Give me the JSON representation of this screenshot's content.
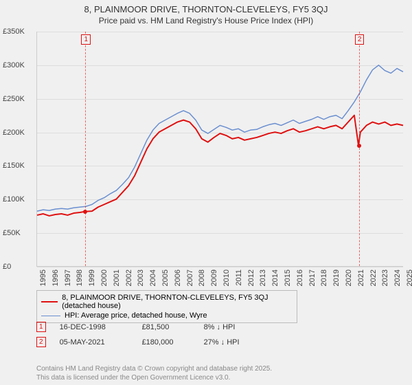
{
  "title": {
    "main": "8, PLAINMOOR DRIVE, THORNTON-CLEVELEYS, FY5 3QJ",
    "sub": "Price paid vs. HM Land Registry's House Price Index (HPI)"
  },
  "chart": {
    "type": "line",
    "background_color": "#f0f0f0",
    "grid_color": "#dddddd",
    "axis_color": "#cccccc",
    "ylim": [
      0,
      350000
    ],
    "ytick_step": 50000,
    "yticks": [
      "£0",
      "£50K",
      "£100K",
      "£150K",
      "£200K",
      "£250K",
      "£300K",
      "£350K"
    ],
    "xlim": [
      1995,
      2025
    ],
    "xticks": [
      1995,
      1996,
      1997,
      1998,
      1999,
      2000,
      2001,
      2002,
      2003,
      2004,
      2005,
      2006,
      2007,
      2008,
      2009,
      2010,
      2011,
      2012,
      2013,
      2014,
      2015,
      2016,
      2017,
      2018,
      2019,
      2020,
      2021,
      2022,
      2023,
      2024,
      2025
    ],
    "series": [
      {
        "id": "price_paid",
        "label": "8, PLAINMOOR DRIVE, THORNTON-CLEVELEYS, FY5 3QJ (detached house)",
        "color": "#e01010",
        "width": 2,
        "data": [
          [
            1995,
            76000
          ],
          [
            1995.5,
            78000
          ],
          [
            1996,
            75000
          ],
          [
            1996.5,
            77000
          ],
          [
            1997,
            78000
          ],
          [
            1997.5,
            76000
          ],
          [
            1998,
            79000
          ],
          [
            1998.5,
            80000
          ],
          [
            1998.96,
            81500
          ],
          [
            1999.5,
            82000
          ],
          [
            2000,
            88000
          ],
          [
            2000.5,
            92000
          ],
          [
            2001,
            96000
          ],
          [
            2001.5,
            100000
          ],
          [
            2002,
            110000
          ],
          [
            2002.5,
            120000
          ],
          [
            2003,
            135000
          ],
          [
            2003.5,
            155000
          ],
          [
            2004,
            175000
          ],
          [
            2004.5,
            190000
          ],
          [
            2005,
            200000
          ],
          [
            2005.5,
            205000
          ],
          [
            2006,
            210000
          ],
          [
            2006.5,
            215000
          ],
          [
            2007,
            218000
          ],
          [
            2007.5,
            215000
          ],
          [
            2008,
            205000
          ],
          [
            2008.5,
            190000
          ],
          [
            2009,
            185000
          ],
          [
            2009.5,
            192000
          ],
          [
            2010,
            198000
          ],
          [
            2010.5,
            195000
          ],
          [
            2011,
            190000
          ],
          [
            2011.5,
            192000
          ],
          [
            2012,
            188000
          ],
          [
            2012.5,
            190000
          ],
          [
            2013,
            192000
          ],
          [
            2013.5,
            195000
          ],
          [
            2014,
            198000
          ],
          [
            2014.5,
            200000
          ],
          [
            2015,
            198000
          ],
          [
            2015.5,
            202000
          ],
          [
            2016,
            205000
          ],
          [
            2016.5,
            200000
          ],
          [
            2017,
            202000
          ],
          [
            2017.5,
            205000
          ],
          [
            2018,
            208000
          ],
          [
            2018.5,
            205000
          ],
          [
            2019,
            208000
          ],
          [
            2019.5,
            210000
          ],
          [
            2020,
            205000
          ],
          [
            2020.5,
            215000
          ],
          [
            2021,
            225000
          ],
          [
            2021.34,
            180000
          ],
          [
            2021.5,
            200000
          ],
          [
            2022,
            210000
          ],
          [
            2022.5,
            215000
          ],
          [
            2023,
            212000
          ],
          [
            2023.5,
            215000
          ],
          [
            2024,
            210000
          ],
          [
            2024.5,
            212000
          ],
          [
            2025,
            210000
          ]
        ]
      },
      {
        "id": "hpi",
        "label": "HPI: Average price, detached house, Wyre",
        "color": "#6a8fd0",
        "width": 1.5,
        "data": [
          [
            1995,
            82000
          ],
          [
            1995.5,
            84000
          ],
          [
            1996,
            83000
          ],
          [
            1996.5,
            85000
          ],
          [
            1997,
            86000
          ],
          [
            1997.5,
            85000
          ],
          [
            1998,
            87000
          ],
          [
            1998.5,
            88000
          ],
          [
            1999,
            89000
          ],
          [
            1999.5,
            92000
          ],
          [
            2000,
            98000
          ],
          [
            2000.5,
            102000
          ],
          [
            2001,
            108000
          ],
          [
            2001.5,
            113000
          ],
          [
            2002,
            122000
          ],
          [
            2002.5,
            132000
          ],
          [
            2003,
            148000
          ],
          [
            2003.5,
            168000
          ],
          [
            2004,
            188000
          ],
          [
            2004.5,
            203000
          ],
          [
            2005,
            213000
          ],
          [
            2005.5,
            218000
          ],
          [
            2006,
            223000
          ],
          [
            2006.5,
            228000
          ],
          [
            2007,
            232000
          ],
          [
            2007.5,
            228000
          ],
          [
            2008,
            218000
          ],
          [
            2008.5,
            203000
          ],
          [
            2009,
            198000
          ],
          [
            2009.5,
            204000
          ],
          [
            2010,
            210000
          ],
          [
            2010.5,
            207000
          ],
          [
            2011,
            203000
          ],
          [
            2011.5,
            205000
          ],
          [
            2012,
            200000
          ],
          [
            2012.5,
            203000
          ],
          [
            2013,
            204000
          ],
          [
            2013.5,
            208000
          ],
          [
            2014,
            211000
          ],
          [
            2014.5,
            213000
          ],
          [
            2015,
            210000
          ],
          [
            2015.5,
            214000
          ],
          [
            2016,
            218000
          ],
          [
            2016.5,
            213000
          ],
          [
            2017,
            216000
          ],
          [
            2017.5,
            219000
          ],
          [
            2018,
            223000
          ],
          [
            2018.5,
            219000
          ],
          [
            2019,
            223000
          ],
          [
            2019.5,
            225000
          ],
          [
            2020,
            220000
          ],
          [
            2020.5,
            232000
          ],
          [
            2021,
            245000
          ],
          [
            2021.5,
            260000
          ],
          [
            2022,
            278000
          ],
          [
            2022.5,
            293000
          ],
          [
            2023,
            300000
          ],
          [
            2023.5,
            292000
          ],
          [
            2024,
            288000
          ],
          [
            2024.5,
            295000
          ],
          [
            2025,
            290000
          ]
        ]
      }
    ],
    "markers": [
      {
        "n": "1",
        "x": 1998.96,
        "y": 81500
      },
      {
        "n": "2",
        "x": 2021.34,
        "y": 180000
      }
    ]
  },
  "legend": {
    "items": [
      {
        "color": "#e01010",
        "width": 2,
        "label": "8, PLAINMOOR DRIVE, THORNTON-CLEVELEYS, FY5 3QJ (detached house)"
      },
      {
        "color": "#6a8fd0",
        "width": 1.5,
        "label": "HPI: Average price, detached house, Wyre"
      }
    ]
  },
  "annotations": [
    {
      "n": "1",
      "date": "16-DEC-1998",
      "price": "£81,500",
      "delta": "8% ↓ HPI"
    },
    {
      "n": "2",
      "date": "05-MAY-2021",
      "price": "£180,000",
      "delta": "27% ↓ HPI"
    }
  ],
  "footer": {
    "line1": "Contains HM Land Registry data © Crown copyright and database right 2025.",
    "line2": "This data is licensed under the Open Government Licence v3.0."
  }
}
